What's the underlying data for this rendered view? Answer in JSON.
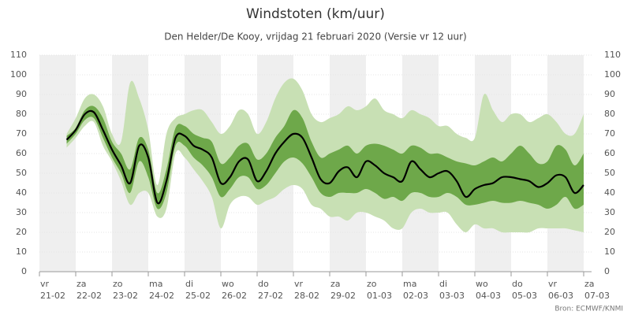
{
  "chart_data": {
    "type": "plume",
    "title": "Windstoten (km/uur)",
    "subtitle": "Den Helder/De Kooy, vrijdag 21 februari 2020 (Versie vr 12 uur)",
    "source": "Bron: ECMWF/KNMI",
    "ylim": [
      0,
      110
    ],
    "yticks": [
      0,
      10,
      20,
      30,
      40,
      50,
      60,
      70,
      80,
      90,
      100,
      110
    ],
    "xlim": [
      0,
      15.2
    ],
    "xticks": [
      {
        "value": 0,
        "day": "vr",
        "label": "21-02"
      },
      {
        "value": 1,
        "day": "za",
        "label": "22-02"
      },
      {
        "value": 2,
        "day": "zo",
        "label": "23-02"
      },
      {
        "value": 3,
        "day": "ma",
        "label": "24-02"
      },
      {
        "value": 4,
        "day": "di",
        "label": "25-02"
      },
      {
        "value": 5,
        "day": "wo",
        "label": "26-02"
      },
      {
        "value": 6,
        "day": "do",
        "label": "27-02"
      },
      {
        "value": 7,
        "day": "vr",
        "label": "28-02"
      },
      {
        "value": 8,
        "day": "za",
        "label": "29-02"
      },
      {
        "value": 9,
        "day": "zo",
        "label": "01-03"
      },
      {
        "value": 10,
        "day": "ma",
        "label": "02-03"
      },
      {
        "value": 11,
        "day": "di",
        "label": "03-03"
      },
      {
        "value": 12,
        "day": "wo",
        "label": "04-03"
      },
      {
        "value": 13,
        "day": "do",
        "label": "05-03"
      },
      {
        "value": 14,
        "day": "vr",
        "label": "06-03"
      },
      {
        "value": 15,
        "day": "za",
        "label": "07-03"
      }
    ],
    "x": [
      0.75,
      1,
      1.25,
      1.5,
      1.75,
      2,
      2.25,
      2.5,
      2.75,
      3,
      3.25,
      3.5,
      3.75,
      4,
      4.25,
      4.5,
      4.75,
      5,
      5.25,
      5.5,
      5.75,
      6,
      6.25,
      6.5,
      6.75,
      7,
      7.25,
      7.5,
      7.75,
      8,
      8.25,
      8.5,
      8.75,
      9,
      9.25,
      9.5,
      9.75,
      10,
      10.25,
      10.5,
      10.75,
      11,
      11.25,
      11.5,
      11.75,
      12,
      12.25,
      12.5,
      12.75,
      13,
      13.25,
      13.5,
      13.75,
      14,
      14.25,
      14.5,
      14.75,
      15
    ],
    "bands": [
      {
        "color": "#c8e0b4",
        "high": [
          70,
          78,
          88,
          90,
          84,
          70,
          66,
          96,
          88,
          72,
          44,
          70,
          78,
          80,
          82,
          82,
          76,
          70,
          74,
          82,
          80,
          70,
          76,
          88,
          96,
          98,
          92,
          80,
          76,
          78,
          80,
          84,
          82,
          84,
          88,
          82,
          80,
          78,
          82,
          80,
          78,
          74,
          74,
          70,
          68,
          68,
          90,
          82,
          76,
          80,
          80,
          76,
          78,
          80,
          76,
          70,
          70,
          80
        ],
        "low": [
          63,
          68,
          74,
          76,
          64,
          56,
          46,
          34,
          40,
          40,
          28,
          32,
          60,
          58,
          52,
          46,
          38,
          22,
          34,
          38,
          38,
          34,
          36,
          38,
          42,
          44,
          42,
          34,
          32,
          28,
          28,
          26,
          30,
          30,
          28,
          26,
          22,
          22,
          30,
          32,
          30,
          30,
          30,
          24,
          20,
          24,
          22,
          22,
          20,
          20,
          20,
          20,
          22,
          22,
          22,
          22,
          21,
          20
        ]
      },
      {
        "color": "#6ea84a",
        "high": [
          69,
          73,
          82,
          84,
          78,
          66,
          60,
          52,
          68,
          62,
          40,
          52,
          73,
          74,
          70,
          68,
          66,
          55,
          58,
          64,
          65,
          57,
          60,
          68,
          74,
          82,
          78,
          66,
          58,
          60,
          62,
          64,
          60,
          64,
          65,
          64,
          62,
          60,
          64,
          63,
          60,
          60,
          58,
          56,
          55,
          54,
          56,
          58,
          56,
          60,
          64,
          60,
          55,
          56,
          64,
          62,
          54,
          60
        ],
        "low": [
          65,
          70,
          77,
          78,
          68,
          58,
          50,
          40,
          56,
          48,
          32,
          40,
          64,
          64,
          58,
          54,
          48,
          38,
          42,
          48,
          48,
          42,
          44,
          50,
          56,
          58,
          55,
          48,
          40,
          38,
          40,
          40,
          40,
          42,
          40,
          37,
          38,
          36,
          40,
          40,
          38,
          38,
          40,
          38,
          34,
          34,
          35,
          36,
          35,
          35,
          36,
          35,
          34,
          32,
          34,
          38,
          32,
          34
        ]
      }
    ],
    "series": [
      {
        "color": "#000000",
        "values": [
          67,
          72,
          80,
          81,
          72,
          62,
          54,
          45,
          64,
          58,
          35,
          46,
          68,
          69,
          64,
          62,
          58,
          45,
          48,
          56,
          57,
          46,
          51,
          60,
          66,
          70,
          68,
          58,
          47,
          45,
          51,
          53,
          48,
          56,
          54,
          50,
          48,
          46,
          56,
          52,
          48,
          50,
          51,
          46,
          38,
          42,
          44,
          45,
          48,
          48,
          47,
          46,
          43,
          45,
          49,
          48,
          40,
          44
        ]
      }
    ]
  }
}
